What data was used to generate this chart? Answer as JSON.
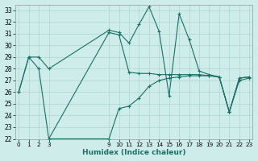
{
  "xlabel": "Humidex (Indice chaleur)",
  "bg_color": "#cdecea",
  "grid_color": "#aed4d0",
  "line_color": "#1a7065",
  "ylim": [
    22,
    33.5
  ],
  "yticks": [
    22,
    23,
    24,
    25,
    26,
    27,
    28,
    29,
    30,
    31,
    32,
    33
  ],
  "xlim": [
    -0.3,
    23.3
  ],
  "series1_x": [
    0,
    1,
    2,
    3,
    9,
    10,
    11,
    12,
    13,
    14,
    15,
    16,
    17,
    18,
    19,
    20,
    21,
    22,
    23
  ],
  "series1_y": [
    26,
    29,
    29,
    28,
    31.3,
    31.1,
    30.2,
    31.8,
    33.3,
    31.2,
    25.7,
    32.7,
    30.5,
    27.8,
    27.5,
    27.3,
    24.3,
    27.2,
    27.3
  ],
  "series2_x": [
    0,
    1,
    2,
    3,
    9,
    10,
    11,
    12,
    13,
    14,
    15,
    16,
    17,
    18,
    19,
    20,
    21,
    22,
    23
  ],
  "series2_y": [
    26,
    29,
    28,
    22,
    31.1,
    30.9,
    27.7,
    27.6,
    27.6,
    27.5,
    27.5,
    27.5,
    27.5,
    27.5,
    27.4,
    27.3,
    24.3,
    27.2,
    27.3
  ],
  "series3_x": [
    3,
    9,
    10,
    11,
    12,
    13,
    14,
    15,
    16,
    17,
    18,
    19,
    20,
    21,
    22,
    23
  ],
  "series3_y": [
    22,
    22,
    24.6,
    24.8,
    25.5,
    26.5,
    27.0,
    27.2,
    27.3,
    27.4,
    27.4,
    27.4,
    27.3,
    24.3,
    27.0,
    27.2
  ],
  "xtick_positions": [
    0,
    1,
    2,
    3,
    9,
    10,
    11,
    12,
    13,
    14,
    15,
    16,
    17,
    18,
    19,
    20,
    21,
    22,
    23
  ],
  "xtick_labels": [
    "0",
    "1",
    "2",
    "3",
    "9",
    "10",
    "11",
    "12",
    "13",
    "14",
    "15",
    "16",
    "17",
    "18",
    "19",
    "20",
    "21",
    "22",
    "23"
  ]
}
